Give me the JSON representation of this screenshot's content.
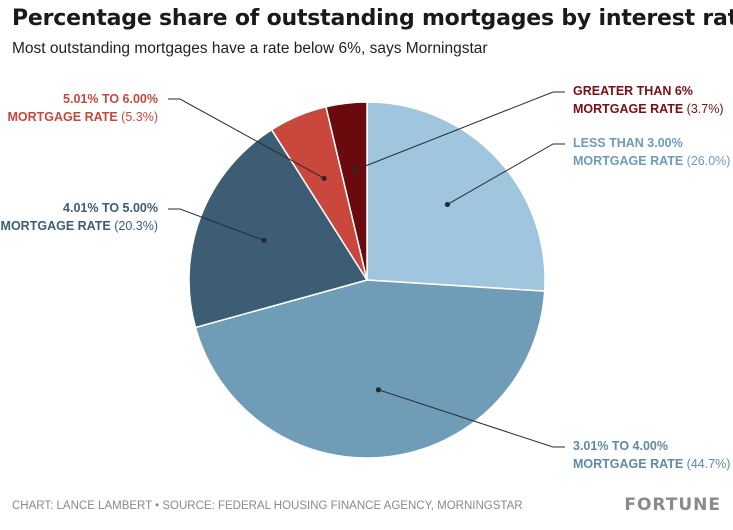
{
  "header": {
    "title": "Percentage share of outstanding mortgages by interest rate",
    "subtitle": "Most outstanding mortgages have a rate below 6%, says Morningstar"
  },
  "footer": {
    "credit": "CHART: LANCE LAMBERT • SOURCE: FEDERAL HOUSING FINANCE AGENCY, MORNINGSTAR",
    "brand": "FORTUNE"
  },
  "chart_data": {
    "type": "pie",
    "title": "Percentage share of outstanding mortgages by interest rate",
    "subtitle": "Most outstanding mortgages have a rate below 6%, says Morningstar",
    "slices": [
      {
        "label_line1": "LESS THAN 3.00%",
        "label_line2": "MORTGAGE RATE",
        "pct_text": "(26.0%)",
        "value": 26.0,
        "color": "#9fc5df",
        "text_color": "#6b9cbd"
      },
      {
        "label_line1": "3.01% TO 4.00%",
        "label_line2": "MORTGAGE RATE",
        "pct_text": "(44.7%)",
        "value": 44.7,
        "color": "#6f9cb6",
        "text_color": "#5d8aa8"
      },
      {
        "label_line1": "4.01% TO 5.00%",
        "label_line2": "MORTGAGE RATE",
        "pct_text": "(20.3%)",
        "value": 20.3,
        "color": "#3c5d74",
        "text_color": "#3c5d74"
      },
      {
        "label_line1": "5.01% TO 6.00%",
        "label_line2": "MORTGAGE RATE",
        "pct_text": "(5.3%)",
        "value": 5.3,
        "color": "#c9473d",
        "text_color": "#c9473d"
      },
      {
        "label_line1": "GREATER THAN 6%",
        "label_line2": "MORTGAGE RATE",
        "pct_text": "(3.7%)",
        "value": 3.7,
        "color": "#6b0a0e",
        "text_color": "#7a0e12"
      }
    ]
  }
}
